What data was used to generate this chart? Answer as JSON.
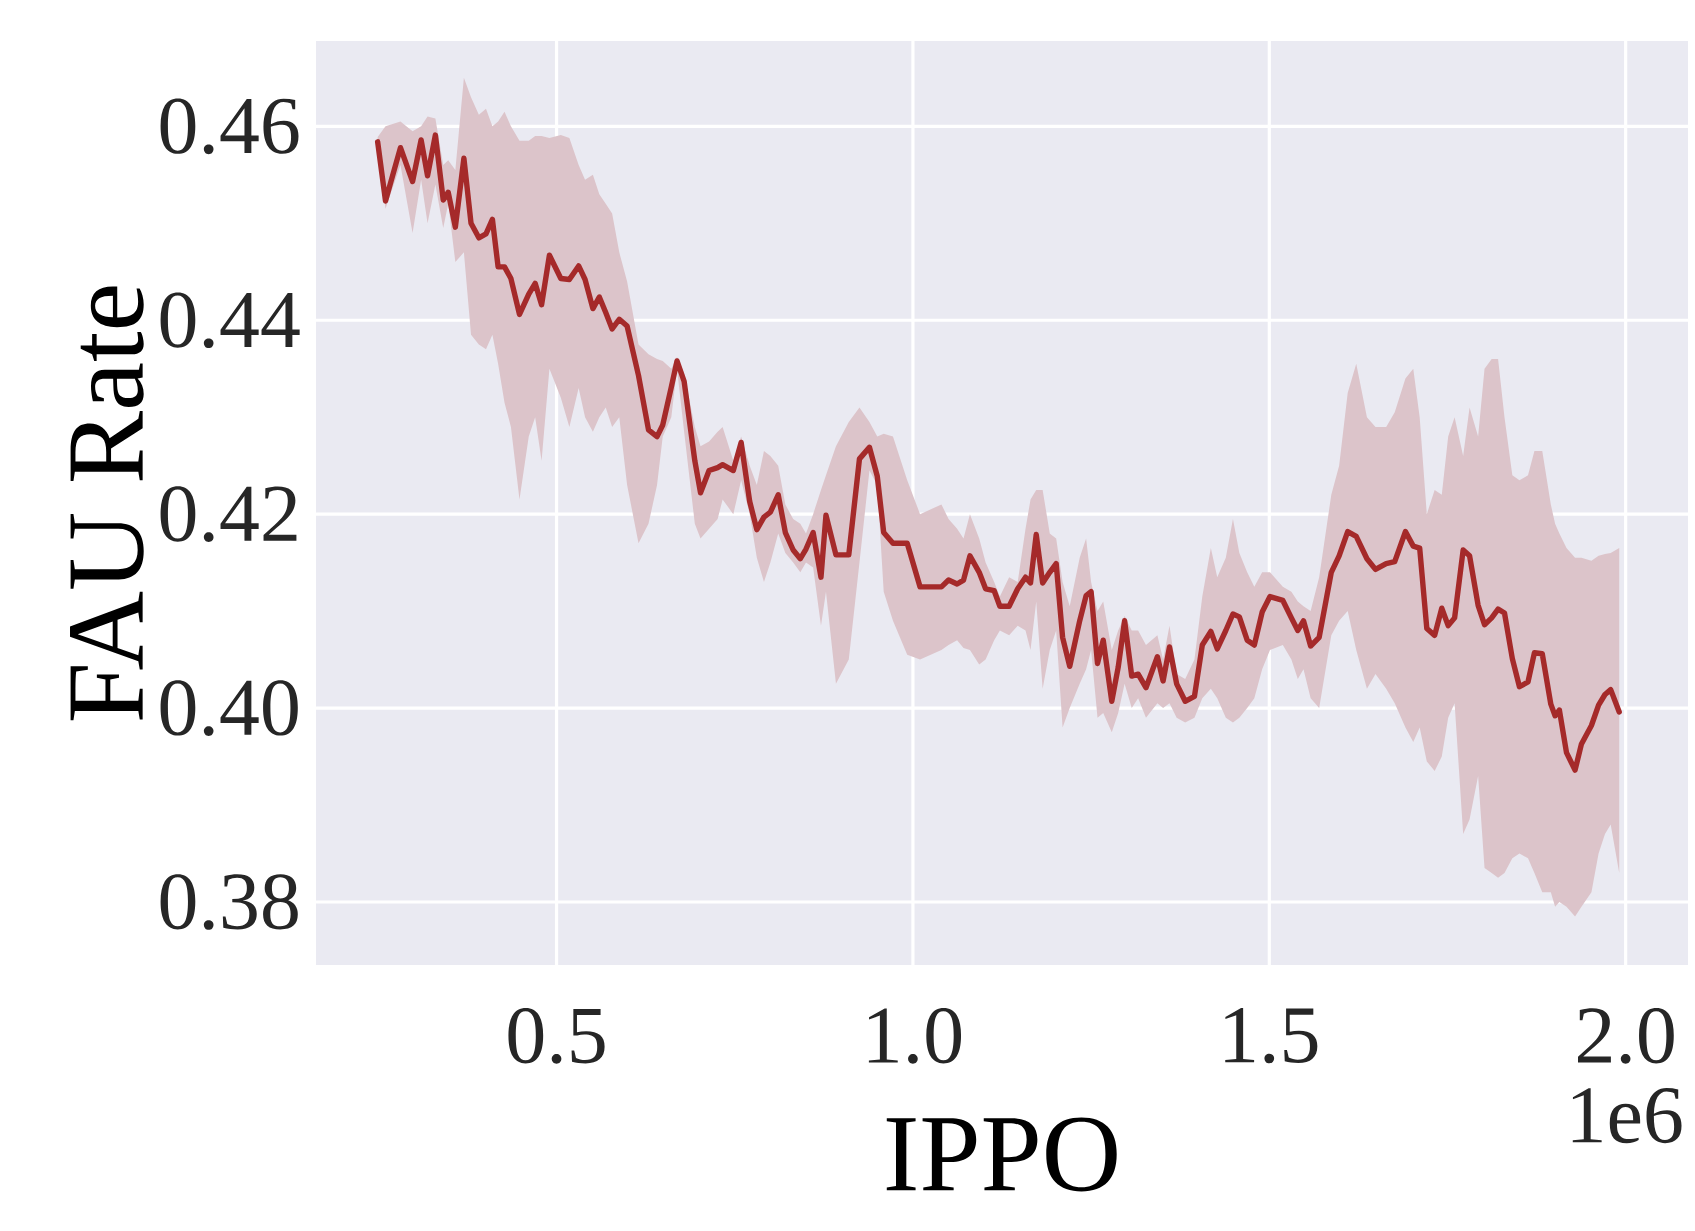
{
  "chart_data": {
    "type": "line",
    "xlabel": "IPPO",
    "ylabel": "FAU Rate",
    "annotations": [
      "1e6"
    ],
    "xlim": [
      0.1625,
      2.0875
    ],
    "ylim": [
      0.3735,
      0.4688
    ],
    "xticks": [
      0.5,
      {
        "value": 1.0,
        "label": "1.0"
      },
      1.5,
      {
        "value": 2.0,
        "label": "2.0"
      }
    ],
    "yticks": [
      0.38,
      {
        "value": 0.4,
        "label": "0.40"
      },
      0.42,
      0.44,
      0.46
    ],
    "grid": true,
    "series": [
      {
        "color": "#a52a2a",
        "x": [
          0.249,
          0.26,
          0.281,
          0.298,
          0.31,
          0.319,
          0.33,
          0.341,
          0.348,
          0.358,
          0.37,
          0.38,
          0.391,
          0.401,
          0.41,
          0.418,
          0.427,
          0.436,
          0.448,
          0.461,
          0.47,
          0.479,
          0.49,
          0.506,
          0.518,
          0.531,
          0.54,
          0.551,
          0.56,
          0.569,
          0.578,
          0.588,
          0.599,
          0.615,
          0.629,
          0.641,
          0.649,
          0.661,
          0.669,
          0.679,
          0.694,
          0.702,
          0.714,
          0.726,
          0.733,
          0.748,
          0.759,
          0.771,
          0.781,
          0.791,
          0.8,
          0.811,
          0.821,
          0.832,
          0.842,
          0.85,
          0.86,
          0.871,
          0.878,
          0.892,
          0.91,
          0.925,
          0.939,
          0.95,
          0.959,
          0.972,
          0.992,
          1.01,
          1.04,
          1.05,
          1.062,
          1.071,
          1.08,
          1.093,
          1.102,
          1.114,
          1.122,
          1.135,
          1.147,
          1.158,
          1.165,
          1.173,
          1.182,
          1.192,
          1.201,
          1.21,
          1.22,
          1.234,
          1.243,
          1.25,
          1.259,
          1.267,
          1.279,
          1.288,
          1.297,
          1.307,
          1.316,
          1.327,
          1.343,
          1.351,
          1.36,
          1.37,
          1.382,
          1.395,
          1.406,
          1.418,
          1.427,
          1.439,
          1.449,
          1.458,
          1.469,
          1.479,
          1.49,
          1.501,
          1.519,
          1.531,
          1.54,
          1.548,
          1.558,
          1.57,
          1.587,
          1.598,
          1.61,
          1.622,
          1.637,
          1.649,
          1.664,
          1.676,
          1.691,
          1.702,
          1.711,
          1.721,
          1.732,
          1.742,
          1.751,
          1.76,
          1.772,
          1.781,
          1.793,
          1.802,
          1.812,
          1.821,
          1.83,
          1.841,
          1.851,
          1.863,
          1.872,
          1.883,
          1.895,
          1.901,
          1.907,
          1.917,
          1.929,
          1.938,
          1.952,
          1.962,
          1.971,
          1.979,
          1.991
        ],
        "values": [
          0.4584,
          0.4523,
          0.4578,
          0.4543,
          0.4586,
          0.4549,
          0.4591,
          0.4524,
          0.4532,
          0.4496,
          0.4567,
          0.45,
          0.4485,
          0.4489,
          0.4504,
          0.4455,
          0.4455,
          0.4443,
          0.4406,
          0.4427,
          0.4438,
          0.4416,
          0.4467,
          0.4443,
          0.4442,
          0.4456,
          0.4442,
          0.4412,
          0.4424,
          0.4408,
          0.4391,
          0.4401,
          0.4394,
          0.4343,
          0.4287,
          0.428,
          0.4292,
          0.4331,
          0.4358,
          0.4337,
          0.4255,
          0.4222,
          0.4245,
          0.4248,
          0.4251,
          0.4245,
          0.4274,
          0.4213,
          0.4184,
          0.4197,
          0.4202,
          0.422,
          0.4181,
          0.4163,
          0.4154,
          0.4164,
          0.4181,
          0.4135,
          0.4199,
          0.4158,
          0.4158,
          0.4257,
          0.4269,
          0.4239,
          0.4181,
          0.417,
          0.417,
          0.4125,
          0.4125,
          0.4132,
          0.4128,
          0.4132,
          0.4157,
          0.414,
          0.4123,
          0.4121,
          0.4105,
          0.4105,
          0.4123,
          0.4135,
          0.4129,
          0.4179,
          0.4129,
          0.414,
          0.4149,
          0.4073,
          0.4043,
          0.409,
          0.4116,
          0.412,
          0.4046,
          0.407,
          0.4007,
          0.4042,
          0.409,
          0.4033,
          0.4035,
          0.4021,
          0.4053,
          0.4028,
          0.4063,
          0.4025,
          0.4007,
          0.4012,
          0.4065,
          0.4079,
          0.4061,
          0.408,
          0.4097,
          0.4094,
          0.407,
          0.4065,
          0.4099,
          0.4115,
          0.4111,
          0.4093,
          0.408,
          0.409,
          0.4064,
          0.4073,
          0.414,
          0.4157,
          0.4182,
          0.4177,
          0.4154,
          0.4143,
          0.4149,
          0.4151,
          0.4182,
          0.4167,
          0.4165,
          0.4082,
          0.4075,
          0.4103,
          0.4085,
          0.4093,
          0.4163,
          0.4157,
          0.4106,
          0.4086,
          0.4093,
          0.4102,
          0.4098,
          0.4051,
          0.4022,
          0.4027,
          0.4057,
          0.4056,
          0.4004,
          0.3992,
          0.3998,
          0.3954,
          0.3936,
          0.3963,
          0.3982,
          0.4003,
          0.4014,
          0.4019,
          0.3996
        ],
        "upper": [
          0.4589,
          0.46,
          0.4605,
          0.4595,
          0.46,
          0.461,
          0.4608,
          0.456,
          0.4565,
          0.4555,
          0.465,
          0.463,
          0.4612,
          0.4618,
          0.46,
          0.4605,
          0.4615,
          0.46,
          0.4585,
          0.4585,
          0.459,
          0.459,
          0.4588,
          0.4591,
          0.4588,
          0.456,
          0.4545,
          0.455,
          0.453,
          0.452,
          0.451,
          0.447,
          0.444,
          0.4375,
          0.4365,
          0.436,
          0.4358,
          0.435,
          0.4362,
          0.4345,
          0.429,
          0.427,
          0.4275,
          0.4285,
          0.429,
          0.4255,
          0.428,
          0.425,
          0.423,
          0.4265,
          0.426,
          0.425,
          0.421,
          0.4195,
          0.419,
          0.418,
          0.42,
          0.4225,
          0.424,
          0.427,
          0.4295,
          0.431,
          0.4295,
          0.428,
          0.4283,
          0.428,
          0.4235,
          0.42,
          0.421,
          0.4195,
          0.4185,
          0.4175,
          0.42,
          0.4175,
          0.415,
          0.413,
          0.4115,
          0.4135,
          0.413,
          0.4185,
          0.4215,
          0.4225,
          0.4225,
          0.418,
          0.4175,
          0.413,
          0.4105,
          0.4155,
          0.4175,
          0.413,
          0.41,
          0.411,
          0.406,
          0.408,
          0.4095,
          0.408,
          0.408,
          0.4065,
          0.4075,
          0.405,
          0.4085,
          0.4035,
          0.403,
          0.405,
          0.4115,
          0.4165,
          0.4135,
          0.4155,
          0.4195,
          0.416,
          0.414,
          0.4125,
          0.414,
          0.414,
          0.4125,
          0.412,
          0.411,
          0.4105,
          0.41,
          0.4135,
          0.422,
          0.425,
          0.4325,
          0.4355,
          0.43,
          0.429,
          0.429,
          0.4305,
          0.434,
          0.435,
          0.43,
          0.42,
          0.4225,
          0.422,
          0.428,
          0.43,
          0.426,
          0.431,
          0.428,
          0.435,
          0.436,
          0.436,
          0.43,
          0.424,
          0.4235,
          0.424,
          0.4265,
          0.4265,
          0.421,
          0.419,
          0.418,
          0.4165,
          0.4155,
          0.4155,
          0.4152,
          0.4157,
          0.4159,
          0.416,
          0.4165
        ],
        "lower": [
          0.4578,
          0.4515,
          0.456,
          0.449,
          0.4545,
          0.45,
          0.454,
          0.4495,
          0.452,
          0.446,
          0.447,
          0.4385,
          0.4375,
          0.437,
          0.4385,
          0.4355,
          0.4315,
          0.429,
          0.4215,
          0.428,
          0.43,
          0.4255,
          0.435,
          0.432,
          0.429,
          0.433,
          0.43,
          0.4285,
          0.43,
          0.431,
          0.429,
          0.43,
          0.423,
          0.417,
          0.419,
          0.423,
          0.428,
          0.43,
          0.435,
          0.4285,
          0.419,
          0.4175,
          0.4185,
          0.4195,
          0.4215,
          0.42,
          0.4235,
          0.42,
          0.4155,
          0.413,
          0.415,
          0.418,
          0.416,
          0.415,
          0.414,
          0.415,
          0.4145,
          0.4085,
          0.412,
          0.4025,
          0.405,
          0.415,
          0.4245,
          0.423,
          0.412,
          0.409,
          0.4055,
          0.405,
          0.406,
          0.4065,
          0.407,
          0.4062,
          0.406,
          0.4045,
          0.405,
          0.407,
          0.408,
          0.4075,
          0.4085,
          0.408,
          0.406,
          0.411,
          0.402,
          0.406,
          0.408,
          0.398,
          0.4,
          0.4025,
          0.404,
          0.406,
          0.399,
          0.3995,
          0.3975,
          0.3995,
          0.4025,
          0.4,
          0.401,
          0.399,
          0.4005,
          0.4,
          0.4005,
          0.399,
          0.3985,
          0.399,
          0.401,
          0.402,
          0.401,
          0.399,
          0.3985,
          0.399,
          0.4,
          0.401,
          0.404,
          0.406,
          0.4065,
          0.405,
          0.403,
          0.404,
          0.401,
          0.4,
          0.4075,
          0.409,
          0.41,
          0.406,
          0.402,
          0.4035,
          0.402,
          0.4005,
          0.398,
          0.3965,
          0.398,
          0.3945,
          0.3935,
          0.395,
          0.399,
          0.4005,
          0.387,
          0.3885,
          0.393,
          0.3835,
          0.383,
          0.3825,
          0.383,
          0.3845,
          0.385,
          0.3845,
          0.383,
          0.381,
          0.381,
          0.3795,
          0.38,
          0.3795,
          0.3785,
          0.3795,
          0.381,
          0.385,
          0.387,
          0.388,
          0.383
        ]
      }
    ]
  }
}
